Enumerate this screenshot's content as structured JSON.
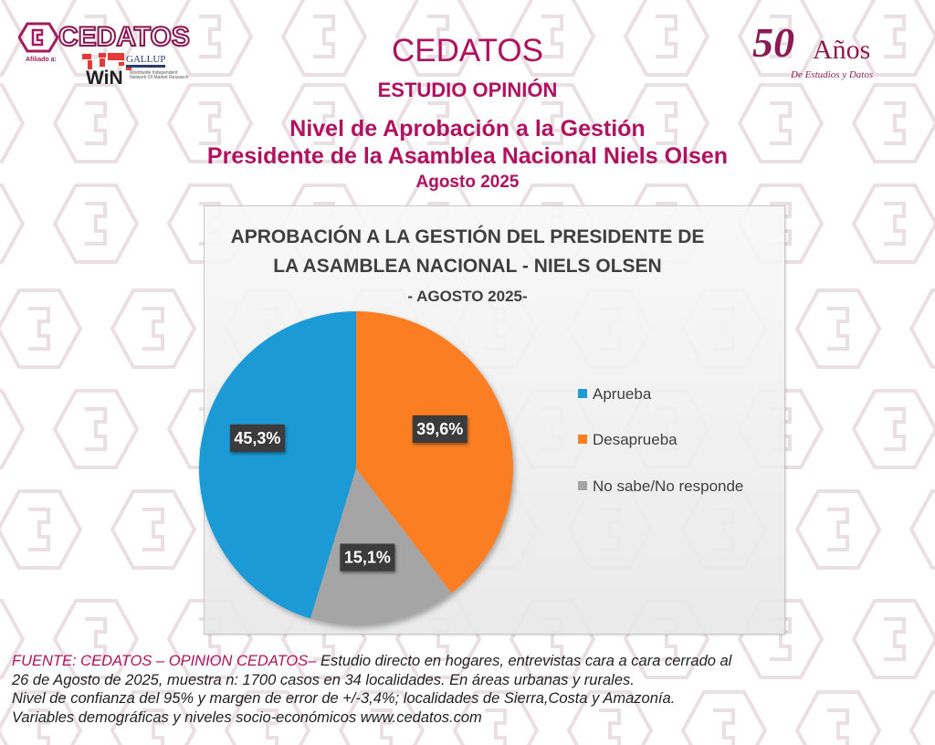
{
  "logo": {
    "brand": "CEDATOS",
    "affiliation_label": "Afiliado a:",
    "partner1": "GALLUP",
    "partner1_sub": "INTERNATIONAL",
    "partner2": "WiN",
    "partner2_sub": "Worldwide Independent Network Of Market Research"
  },
  "anniversary": {
    "number": "50",
    "word": "Años",
    "subtitle": "De Estudios y Datos"
  },
  "header": {
    "org": "CEDATOS",
    "study": "ESTUDIO OPINIÓN",
    "title_line1": "Nivel de Aprobación a la Gestión",
    "title_line2": "Presidente de la Asamblea Nacional Niels Olsen",
    "date": "Agosto 2025"
  },
  "chart_data": {
    "type": "pie",
    "title_lines": [
      "APROBACIÓN A LA GESTIÓN DEL PRESIDENTE DE",
      "LA ASAMBLEA NACIONAL - NIELS OLSEN"
    ],
    "subtitle": "- AGOSTO 2025-",
    "categories": [
      "Aprueba",
      "Desaprueba",
      "No sabe/No responde"
    ],
    "values": [
      45.3,
      39.6,
      15.1
    ],
    "labels": [
      "45,3%",
      "39,6%",
      "15,1%"
    ],
    "colors": [
      "#1e9ad6",
      "#fb7e22",
      "#a5a5a5"
    ],
    "start": "12 o'clock, clockwise",
    "draw_order": [
      1,
      2,
      0
    ],
    "legend_position": "right",
    "unit": "%"
  },
  "footer": {
    "source_label": "FUENTE: CEDATOS – OPINION CEDATOS–",
    "line1": " Estudio directo en hogares, entrevistas cara a cara cerrado al",
    "line2": "26 de Agosto de 2025, muestra n: 1700 casos en 34 localidades. En áreas urbanas y rurales.",
    "line3": "Nivel de confianza del 95% y margen de error de +/-3,4%; localidades de Sierra,Costa y Amazonía.",
    "line4": "Variables demográficas y niveles socio-económicos  www.cedatos.com"
  }
}
